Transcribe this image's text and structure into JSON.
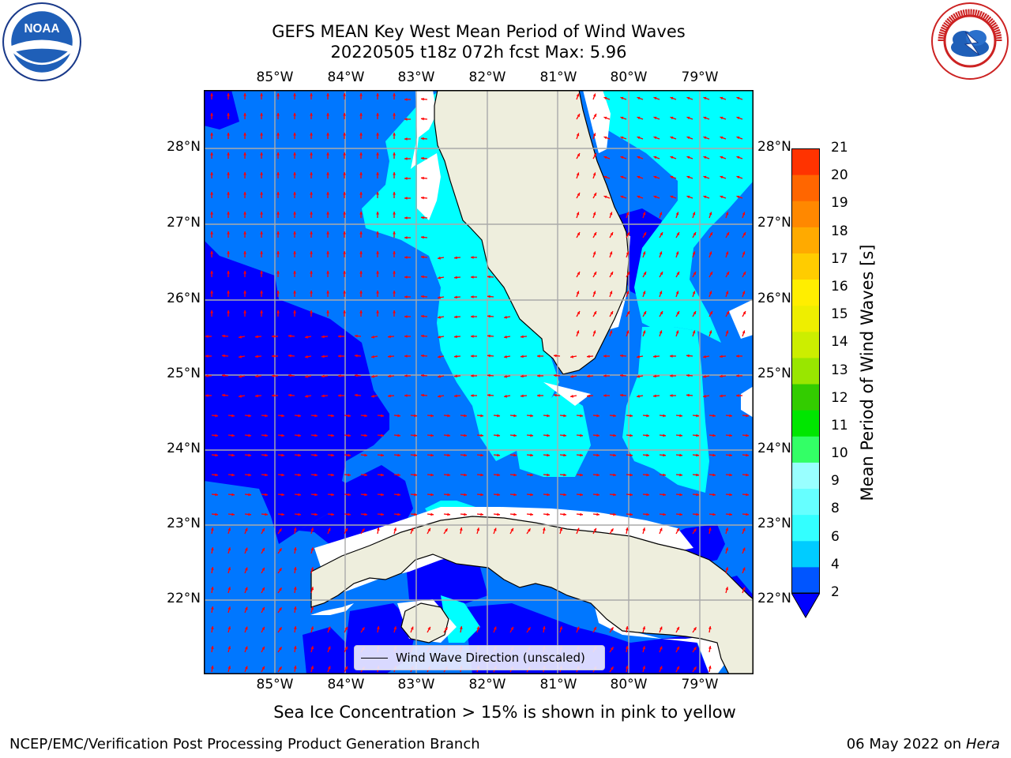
{
  "title": {
    "line1": "GEFS MEAN Key West Mean Period of Wind Waves",
    "line2": "20220505 t18z 072h fcst   Max: 5.96"
  },
  "logos": {
    "left": "noaa-logo",
    "right": "national-weather-service-logo",
    "left_text": "NOAA",
    "right_text": "NATIONAL WEATHER SERVICE"
  },
  "axes": {
    "lon_labels": [
      "85°W",
      "84°W",
      "83°W",
      "82°W",
      "81°W",
      "80°W",
      "79°W"
    ],
    "lat_labels": [
      "28°N",
      "27°N",
      "26°N",
      "25°N",
      "24°N",
      "23°N",
      "22°N"
    ],
    "lon_range": [
      -86.0,
      -78.25
    ],
    "lat_range": [
      21.0,
      28.75
    ],
    "grid": true
  },
  "legend": {
    "label": "Wind Wave Direction (unscaled)",
    "arrow_color": "#ff0000"
  },
  "colorbar": {
    "title": "Mean Period of Wind Waves [s]",
    "labels": [
      "21",
      "20",
      "19",
      "18",
      "17",
      "16",
      "15",
      "14",
      "13",
      "12",
      "11",
      "10",
      "9",
      "8",
      "6",
      "4",
      "2"
    ],
    "levels": [
      2,
      4,
      6,
      7,
      8,
      9,
      10,
      11,
      12,
      13,
      14,
      15,
      16,
      17,
      18,
      19,
      20,
      21
    ],
    "colors": [
      "#0055ff",
      "#00ccff",
      "#33ffff",
      "#66ffff",
      "#99ffff",
      "#33ff66",
      "#00e600",
      "#33cc00",
      "#99e600",
      "#ccee00",
      "#eeee00",
      "#ffee00",
      "#ffcc00",
      "#ffaa00",
      "#ff8800",
      "#ff6600",
      "#ff3300"
    ],
    "extend_min_color": "#0000ff"
  },
  "map_colors": {
    "land": "#eeeedd",
    "lt2": "#0000ff",
    "b2_4": "#0077ff",
    "b4_6": "#00ffff",
    "unknown": "#ffffff"
  },
  "note": "Sea Ice Concentration > 15% is shown in pink to yellow",
  "footer": {
    "left": "NCEP/EMC/Verification Post Processing Product Generation Branch",
    "date": "06 May 2022 on",
    "machine": "Hera"
  }
}
